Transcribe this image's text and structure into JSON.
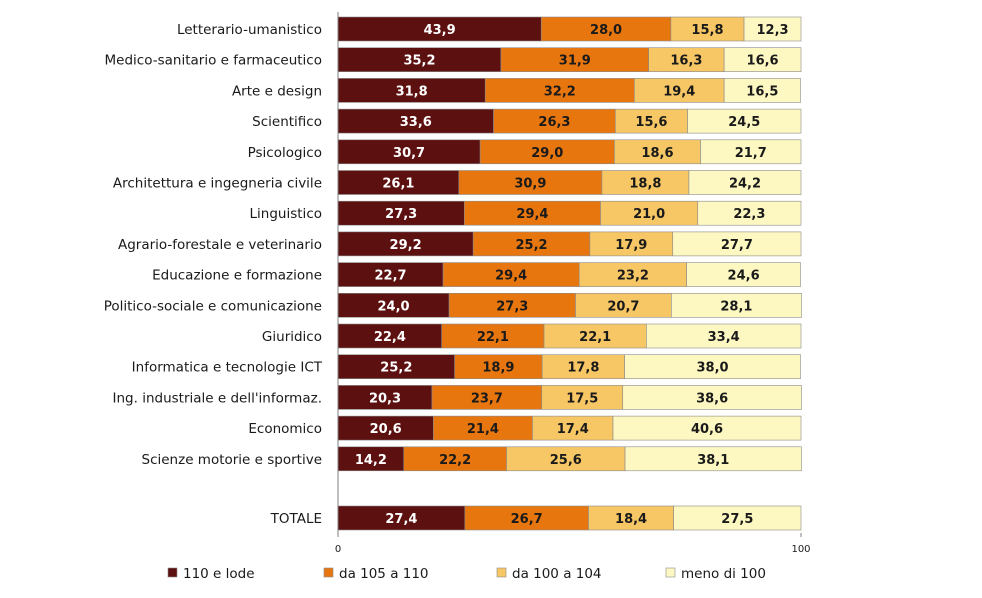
{
  "chart_data": {
    "type": "bar",
    "orientation": "horizontal",
    "stacked": true,
    "title": "",
    "xlabel": "",
    "ylabel": "",
    "xlim": [
      0,
      100
    ],
    "x_ticks": [
      "0",
      "100"
    ],
    "grid": false,
    "legend_position": "bottom",
    "categories": [
      "Letterario-umanistico",
      "Medico-sanitario e farmaceutico",
      "Arte e design",
      "Scientifico",
      "Psicologico",
      "Architettura e ingegneria civile",
      "Linguistico",
      "Agrario-forestale e veterinario",
      "Educazione e formazione",
      "Politico-sociale e comunicazione",
      "Giuridico",
      "Informatica e tecnologie ICT",
      "Ing. industriale e dell'informaz.",
      "Economico",
      "Scienze motorie e sportive",
      "TOTALE"
    ],
    "series": [
      {
        "name": "110 e lode",
        "color": "#5c1010",
        "label_color": "#ffffff",
        "values": [
          43.9,
          35.2,
          31.8,
          33.6,
          30.7,
          26.1,
          27.3,
          29.2,
          22.7,
          24.0,
          22.4,
          25.2,
          20.3,
          20.6,
          14.2,
          27.4
        ],
        "labels": [
          "43,9",
          "35,2",
          "31,8",
          "33,6",
          "30,7",
          "26,1",
          "27,3",
          "29,2",
          "22,7",
          "24,0",
          "22,4",
          "25,2",
          "20,3",
          "20,6",
          "14,2",
          "27,4"
        ]
      },
      {
        "name": "da 105 a 110",
        "color": "#e8760f",
        "label_color": "#1a1a1a",
        "values": [
          28.0,
          31.9,
          32.2,
          26.3,
          29.0,
          30.9,
          29.4,
          25.2,
          29.4,
          27.3,
          22.1,
          18.9,
          23.7,
          21.4,
          22.2,
          26.7
        ],
        "labels": [
          "28,0",
          "31,9",
          "32,2",
          "26,3",
          "29,0",
          "30,9",
          "29,4",
          "25,2",
          "29,4",
          "27,3",
          "22,1",
          "18,9",
          "23,7",
          "21,4",
          "22,2",
          "26,7"
        ]
      },
      {
        "name": "da 100 a 104",
        "color": "#f7c766",
        "label_color": "#1a1a1a",
        "values": [
          15.8,
          16.3,
          19.4,
          15.6,
          18.6,
          18.8,
          21.0,
          17.9,
          23.2,
          20.7,
          22.1,
          17.8,
          17.5,
          17.4,
          25.6,
          18.4
        ],
        "labels": [
          "15,8",
          "16,3",
          "19,4",
          "15,6",
          "18,6",
          "18,8",
          "21,0",
          "17,9",
          "23,2",
          "20,7",
          "22,1",
          "17,8",
          "17,5",
          "17,4",
          "25,6",
          "18,4"
        ]
      },
      {
        "name": "meno di 100",
        "color": "#fdf8c2",
        "label_color": "#1a1a1a",
        "values": [
          12.3,
          16.6,
          16.5,
          24.5,
          21.7,
          24.2,
          22.3,
          27.7,
          24.6,
          28.1,
          33.4,
          38.0,
          38.6,
          40.6,
          38.1,
          27.5
        ],
        "labels": [
          "12,3",
          "16,6",
          "16,5",
          "24,5",
          "21,7",
          "24,2",
          "22,3",
          "27,7",
          "24,6",
          "28,1",
          "33,4",
          "38,0",
          "38,6",
          "40,6",
          "38,1",
          "27,5"
        ]
      }
    ]
  }
}
